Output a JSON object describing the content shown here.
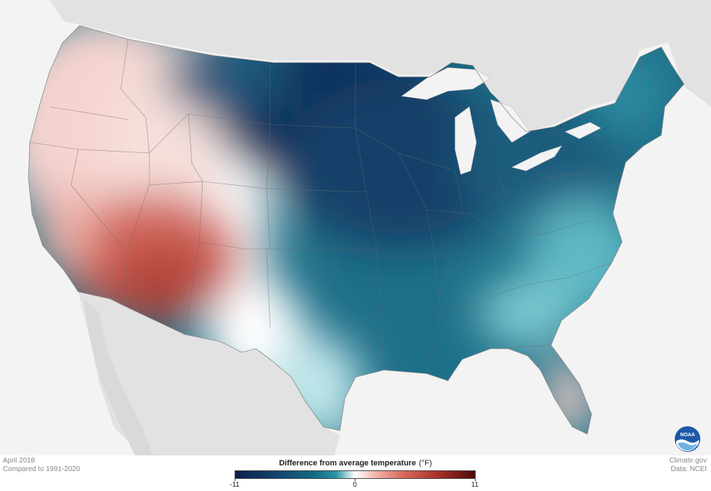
{
  "map": {
    "month": "April 2018",
    "baseline": "Compared to 1991-2020",
    "credit_site": "Climate.gov",
    "credit_data": "Data: NCEI",
    "logo_text": "NOAA"
  },
  "legend": {
    "title": "Difference from average temperature",
    "unit": "(°F)",
    "ticks": [
      "-11",
      "0",
      "11"
    ],
    "min": -11,
    "max": 11,
    "colors": {
      "coldest": "#0d1f4b",
      "cold": "#136a85",
      "neutral": "#ffffff",
      "warm": "#d9695b",
      "warmest": "#4b0a09"
    }
  },
  "regions": {
    "southwest": "warmer than average",
    "central_and_east": "colder than average"
  }
}
